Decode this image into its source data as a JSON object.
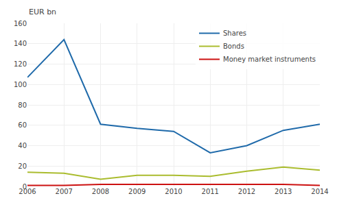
{
  "chart_data": {
    "type": "line",
    "ylabel": "EUR bn",
    "x": [
      2006,
      2007,
      2008,
      2009,
      2010,
      2011,
      2012,
      2013,
      2014
    ],
    "series": [
      {
        "name": "Shares",
        "color": "#1f6aaa",
        "values": [
          107,
          144,
          61,
          57,
          54,
          33,
          40,
          55,
          61
        ]
      },
      {
        "name": "Bonds",
        "color": "#aabc2e",
        "values": [
          14,
          13,
          7,
          11,
          11,
          10,
          15,
          19,
          16
        ]
      },
      {
        "name": "Money market instruments",
        "color": "#cc1111",
        "values": [
          1,
          1,
          2,
          2,
          2,
          2,
          2,
          2,
          1
        ]
      }
    ],
    "xlim": [
      2006,
      2014
    ],
    "xticks": [
      2006,
      2007,
      2008,
      2009,
      2010,
      2011,
      2012,
      2013,
      2014
    ],
    "ylim": [
      0,
      160
    ],
    "yticks": [
      0,
      20,
      40,
      60,
      80,
      100,
      120,
      140,
      160
    ],
    "grid": true,
    "legend": "upper right"
  }
}
